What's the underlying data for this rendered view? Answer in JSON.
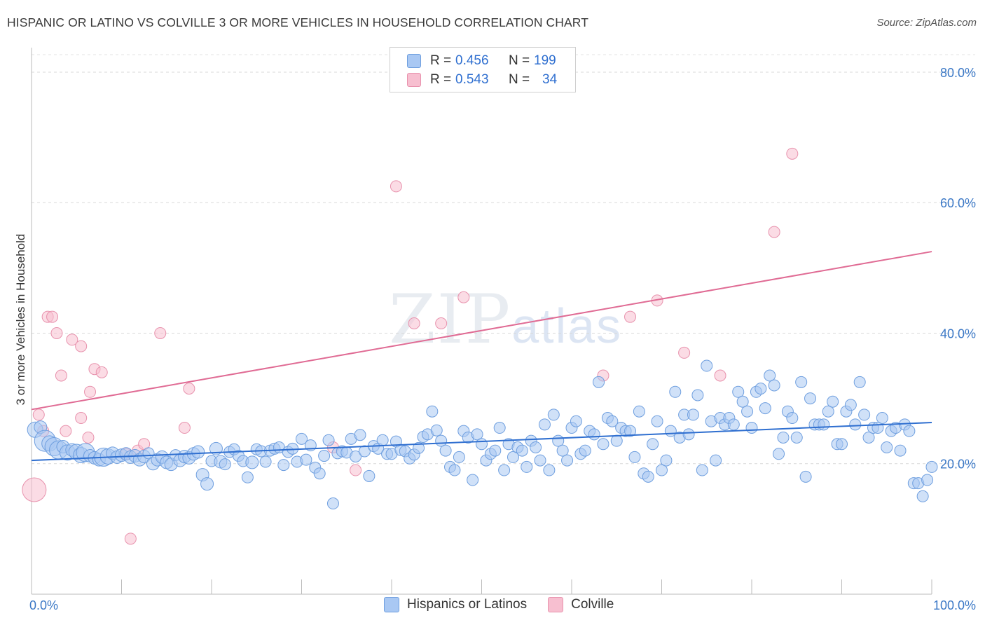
{
  "title": "HISPANIC OR LATINO VS COLVILLE 3 OR MORE VEHICLES IN HOUSEHOLD CORRELATION CHART",
  "source": "Source: ZipAtlas.com",
  "watermark": {
    "zip": "ZIP",
    "atlas": "atlas"
  },
  "legend": {
    "rows": [
      {
        "r_label": "R = ",
        "r_value": "0.456",
        "n_label": "N = ",
        "n_value": "199",
        "color": "#a9c8f3",
        "border": "#6f9fdf"
      },
      {
        "r_label": "R = ",
        "r_value": "0.543",
        "n_label": "N = ",
        "n_value": "34",
        "color": "#f7bfd0",
        "border": "#e892ad"
      }
    ]
  },
  "bottom_legend": [
    {
      "label": "Hispanics or Latinos",
      "color": "#a9c8f3",
      "border": "#6f9fdf"
    },
    {
      "label": "Colville",
      "color": "#f7bfd0",
      "border": "#e892ad"
    }
  ],
  "chart_data": {
    "type": "scatter",
    "title": "HISPANIC OR LATINO VS COLVILLE 3 OR MORE VEHICLES IN HOUSEHOLD CORRELATION CHART",
    "xlabel": "",
    "ylabel": "3 or more Vehicles in Household",
    "xlim": [
      0,
      100
    ],
    "ylim": [
      0,
      83
    ],
    "x_tick_labels": [
      "0.0%",
      "100.0%"
    ],
    "y_ticks": [
      20,
      40,
      60,
      80
    ],
    "y_tick_labels": [
      "20.0%",
      "40.0%",
      "60.0%",
      "80.0%"
    ],
    "grid": "horizontal dashed",
    "legend_position": "top-center",
    "series": [
      {
        "name": "Hispanics or Latinos",
        "color": "#a9c8f3",
        "stroke": "#6f9fdf",
        "trend": {
          "x": [
            0,
            100
          ],
          "y": [
            20.5,
            26.3
          ],
          "color": "#2f6fd0"
        },
        "points": [
          [
            0.4,
            25.2,
            12
          ],
          [
            1.0,
            25.6,
            10
          ],
          [
            1.5,
            23.5,
            16
          ],
          [
            2.0,
            23.1,
            12
          ],
          [
            2.5,
            22.6,
            14
          ],
          [
            3.0,
            22.1,
            14
          ],
          [
            3.5,
            22.6,
            10
          ],
          [
            4.0,
            21.7,
            12
          ],
          [
            4.5,
            22.1,
            10
          ],
          [
            5.0,
            21.8,
            12
          ],
          [
            5.5,
            21.3,
            12
          ],
          [
            6.0,
            21.7,
            14
          ],
          [
            6.5,
            21.2,
            10
          ],
          [
            7.0,
            20.9,
            10
          ],
          [
            7.5,
            20.6,
            10
          ],
          [
            8.0,
            21.0,
            14
          ],
          [
            8.5,
            21.1,
            12
          ],
          [
            9.0,
            21.6,
            10
          ],
          [
            9.5,
            21.0,
            10
          ],
          [
            10.0,
            21.3,
            10
          ],
          [
            10.5,
            21.5,
            10
          ],
          [
            11.0,
            21.0,
            10
          ],
          [
            11.5,
            21.2,
            10
          ],
          [
            12.0,
            20.6,
            10
          ],
          [
            12.5,
            21.1,
            10
          ],
          [
            13.0,
            21.6,
            9
          ],
          [
            13.5,
            20.0,
            10
          ],
          [
            14.0,
            20.6,
            10
          ],
          [
            14.5,
            21.0,
            10
          ],
          [
            15.0,
            20.2,
            10
          ],
          [
            15.5,
            19.9,
            10
          ],
          [
            16.0,
            21.3,
            9
          ],
          [
            16.5,
            20.5,
            10
          ],
          [
            17.0,
            21.1,
            10
          ],
          [
            17.5,
            20.9,
            10
          ],
          [
            18.0,
            21.5,
            10
          ],
          [
            18.5,
            21.8,
            10
          ],
          [
            19.0,
            18.3,
            10
          ],
          [
            19.5,
            16.9,
            10
          ],
          [
            20.0,
            20.4,
            9
          ],
          [
            20.5,
            22.3,
            10
          ],
          [
            21.0,
            20.3,
            10
          ],
          [
            21.5,
            19.9,
            9
          ],
          [
            22.0,
            21.8,
            9
          ],
          [
            22.5,
            22.2,
            9
          ],
          [
            23.0,
            21.2,
            9
          ],
          [
            23.5,
            20.4,
            9
          ],
          [
            24.0,
            17.9,
            9
          ],
          [
            24.5,
            20.2,
            10
          ],
          [
            25.0,
            22.2,
            9
          ],
          [
            25.5,
            21.9,
            9
          ],
          [
            26.0,
            20.3,
            9
          ],
          [
            26.5,
            22.0,
            9
          ],
          [
            27.0,
            22.3,
            9
          ],
          [
            27.5,
            22.5,
            9
          ],
          [
            28.0,
            19.8,
            9
          ],
          [
            28.5,
            21.8,
            9
          ],
          [
            29.0,
            22.3,
            9
          ],
          [
            29.5,
            20.3,
            9
          ],
          [
            30.0,
            23.8,
            9
          ],
          [
            30.5,
            20.6,
            9
          ],
          [
            31.0,
            22.8,
            9
          ],
          [
            31.5,
            19.4,
            9
          ],
          [
            32.0,
            18.5,
            9
          ],
          [
            32.5,
            21.2,
            9
          ],
          [
            33.0,
            23.6,
            9
          ],
          [
            33.5,
            13.9,
            9
          ],
          [
            34.0,
            21.6,
            9
          ],
          [
            34.5,
            21.9,
            9
          ],
          [
            35.0,
            21.7,
            9
          ],
          [
            35.5,
            23.8,
            9
          ],
          [
            36.0,
            21.1,
            9
          ],
          [
            36.5,
            24.4,
            9
          ],
          [
            37.0,
            21.9,
            9
          ],
          [
            37.5,
            18.1,
            9
          ],
          [
            38.0,
            22.7,
            9
          ],
          [
            38.5,
            22.3,
            9
          ],
          [
            39.0,
            23.6,
            9
          ],
          [
            39.5,
            21.5,
            9
          ],
          [
            40.0,
            21.5,
            9
          ],
          [
            40.5,
            23.4,
            9
          ],
          [
            41.0,
            22.1,
            9
          ],
          [
            41.5,
            21.9,
            9
          ],
          [
            42.0,
            20.8,
            9
          ],
          [
            42.5,
            21.4,
            9
          ],
          [
            43.0,
            22.4,
            9
          ],
          [
            43.5,
            24.1,
            9
          ],
          [
            44.0,
            24.5,
            9
          ],
          [
            44.5,
            28.0,
            9
          ],
          [
            45.0,
            25.1,
            9
          ],
          [
            45.5,
            23.5,
            9
          ],
          [
            46.0,
            22.0,
            9
          ],
          [
            46.5,
            19.5,
            9
          ],
          [
            47.0,
            19.0,
            9
          ],
          [
            47.5,
            21.0,
            9
          ],
          [
            48.0,
            25.0,
            9
          ],
          [
            48.5,
            24.0,
            9
          ],
          [
            49.0,
            17.5,
            9
          ],
          [
            49.5,
            24.5,
            9
          ],
          [
            50.0,
            23.0,
            9
          ],
          [
            50.5,
            20.5,
            9
          ],
          [
            51.0,
            21.5,
            9
          ],
          [
            51.5,
            22.0,
            9
          ],
          [
            52.0,
            25.5,
            9
          ],
          [
            52.5,
            19.0,
            9
          ],
          [
            53.0,
            23.0,
            9
          ],
          [
            53.5,
            21.0,
            9
          ],
          [
            54.0,
            22.5,
            9
          ],
          [
            54.5,
            22.0,
            9
          ],
          [
            55.0,
            19.5,
            9
          ],
          [
            55.5,
            23.5,
            9
          ],
          [
            56.0,
            22.5,
            9
          ],
          [
            56.5,
            20.5,
            9
          ],
          [
            57.0,
            26.0,
            9
          ],
          [
            57.5,
            19.0,
            9
          ],
          [
            58.0,
            27.5,
            9
          ],
          [
            58.5,
            23.5,
            9
          ],
          [
            59.0,
            22.0,
            9
          ],
          [
            59.5,
            20.5,
            9
          ],
          [
            60.0,
            25.5,
            9
          ],
          [
            60.5,
            26.5,
            9
          ],
          [
            61.0,
            21.5,
            9
          ],
          [
            61.5,
            22.0,
            9
          ],
          [
            62.0,
            25.0,
            9
          ],
          [
            62.5,
            24.5,
            9
          ],
          [
            63.0,
            32.5,
            9
          ],
          [
            63.5,
            23.0,
            9
          ],
          [
            64.0,
            27.0,
            9
          ],
          [
            64.5,
            26.5,
            9
          ],
          [
            65.0,
            23.5,
            9
          ],
          [
            65.5,
            25.5,
            9
          ],
          [
            66.0,
            25.0,
            9
          ],
          [
            66.5,
            25.0,
            9
          ],
          [
            67.0,
            21.0,
            9
          ],
          [
            67.5,
            28.0,
            9
          ],
          [
            68.0,
            18.5,
            9
          ],
          [
            68.5,
            18.0,
            9
          ],
          [
            69.0,
            23.0,
            9
          ],
          [
            69.5,
            26.5,
            9
          ],
          [
            70.0,
            19.0,
            9
          ],
          [
            70.5,
            20.5,
            9
          ],
          [
            71.0,
            25.0,
            9
          ],
          [
            71.5,
            31.0,
            9
          ],
          [
            72.0,
            24.0,
            9
          ],
          [
            72.5,
            27.5,
            9
          ],
          [
            73.0,
            24.5,
            9
          ],
          [
            73.5,
            27.5,
            9
          ],
          [
            74.0,
            30.5,
            9
          ],
          [
            74.5,
            19.0,
            9
          ],
          [
            75.0,
            35.0,
            9
          ],
          [
            75.5,
            26.5,
            9
          ],
          [
            76.0,
            20.5,
            9
          ],
          [
            76.5,
            27.0,
            9
          ],
          [
            77.0,
            26.0,
            9
          ],
          [
            77.5,
            27.0,
            9
          ],
          [
            78.0,
            26.0,
            9
          ],
          [
            78.5,
            31.0,
            9
          ],
          [
            79.0,
            29.5,
            9
          ],
          [
            79.5,
            28.0,
            9
          ],
          [
            80.0,
            25.5,
            9
          ],
          [
            80.5,
            31.0,
            9
          ],
          [
            81.0,
            31.5,
            9
          ],
          [
            81.5,
            28.5,
            9
          ],
          [
            82.0,
            33.5,
            9
          ],
          [
            82.5,
            32.0,
            9
          ],
          [
            83.0,
            21.5,
            9
          ],
          [
            83.5,
            24.0,
            9
          ],
          [
            84.0,
            28.0,
            9
          ],
          [
            84.5,
            27.0,
            9
          ],
          [
            85.0,
            24.0,
            9
          ],
          [
            85.5,
            32.5,
            9
          ],
          [
            86.0,
            18.0,
            9
          ],
          [
            86.5,
            30.0,
            9
          ],
          [
            87.0,
            26.0,
            9
          ],
          [
            87.5,
            26.0,
            9
          ],
          [
            88.0,
            26.0,
            9
          ],
          [
            88.5,
            28.0,
            9
          ],
          [
            89.0,
            29.5,
            9
          ],
          [
            89.5,
            23.0,
            9
          ],
          [
            90.0,
            23.0,
            9
          ],
          [
            90.5,
            28.0,
            9
          ],
          [
            91.0,
            29.0,
            9
          ],
          [
            91.5,
            26.0,
            9
          ],
          [
            92.0,
            32.5,
            9
          ],
          [
            92.5,
            27.5,
            9
          ],
          [
            93.0,
            24.0,
            9
          ],
          [
            93.5,
            25.5,
            9
          ],
          [
            94.0,
            25.5,
            9
          ],
          [
            94.5,
            27.0,
            9
          ],
          [
            95.0,
            22.5,
            9
          ],
          [
            95.5,
            25.0,
            9
          ],
          [
            96.0,
            25.5,
            9
          ],
          [
            96.5,
            22.0,
            9
          ],
          [
            97.0,
            26.0,
            9
          ],
          [
            97.5,
            25.0,
            9
          ],
          [
            98.0,
            17.0,
            9
          ],
          [
            98.5,
            17.0,
            9
          ],
          [
            99.0,
            15.0,
            9
          ],
          [
            99.5,
            17.5,
            9
          ],
          [
            100.0,
            19.5,
            9
          ]
        ]
      },
      {
        "name": "Colville",
        "color": "#f7bfd0",
        "stroke": "#e892ad",
        "trend": {
          "x": [
            0,
            100
          ],
          "y": [
            28.3,
            52.5
          ],
          "color": "#e06b94"
        },
        "points": [
          [
            0.3,
            16.0,
            18
          ],
          [
            0.8,
            27.5,
            9
          ],
          [
            1.3,
            25.0,
            9
          ],
          [
            1.8,
            42.5,
            9
          ],
          [
            2.3,
            42.5,
            9
          ],
          [
            2.8,
            40.0,
            9
          ],
          [
            3.3,
            33.5,
            9
          ],
          [
            3.8,
            25.0,
            9
          ],
          [
            4.5,
            39.0,
            9
          ],
          [
            5.5,
            38.0,
            9
          ],
          [
            5.5,
            27.0,
            9
          ],
          [
            6.3,
            24.0,
            9
          ],
          [
            6.5,
            31.0,
            9
          ],
          [
            7.0,
            34.5,
            9
          ],
          [
            7.8,
            34.0,
            9
          ],
          [
            10.5,
            21.5,
            9
          ],
          [
            11.0,
            8.5,
            9
          ],
          [
            11.8,
            22.0,
            9
          ],
          [
            12.5,
            23.0,
            9
          ],
          [
            14.3,
            40.0,
            9
          ],
          [
            17.0,
            25.5,
            9
          ],
          [
            17.5,
            31.5,
            9
          ],
          [
            33.5,
            22.5,
            9
          ],
          [
            36.0,
            19.0,
            9
          ],
          [
            40.5,
            62.5,
            9
          ],
          [
            42.5,
            41.5,
            9
          ],
          [
            45.5,
            41.5,
            9
          ],
          [
            48.0,
            45.5,
            9
          ],
          [
            63.5,
            33.5,
            9
          ],
          [
            66.5,
            42.5,
            9
          ],
          [
            69.5,
            45.0,
            9
          ],
          [
            72.5,
            37.0,
            9
          ],
          [
            76.5,
            33.5,
            9
          ],
          [
            82.5,
            55.5,
            9
          ],
          [
            84.5,
            67.5,
            9
          ]
        ]
      }
    ]
  }
}
